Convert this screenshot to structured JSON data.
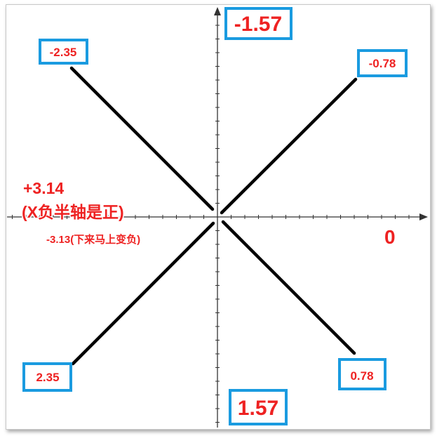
{
  "labels": {
    "top": "-1.57",
    "bottom": "1.57",
    "right": "0",
    "top_left": "-2.35",
    "top_right": "-0.78",
    "bottom_left": "2.35",
    "bottom_right": "0.78",
    "left_line1": "+3.14",
    "left_line2": "(X负半轴是正)",
    "left_line3": "-3.13(下来马上变负)"
  },
  "colors": {
    "label_text": "#ee2222",
    "box_border": "#1a9be0",
    "lines": "#000000",
    "axes": "#333333"
  }
}
